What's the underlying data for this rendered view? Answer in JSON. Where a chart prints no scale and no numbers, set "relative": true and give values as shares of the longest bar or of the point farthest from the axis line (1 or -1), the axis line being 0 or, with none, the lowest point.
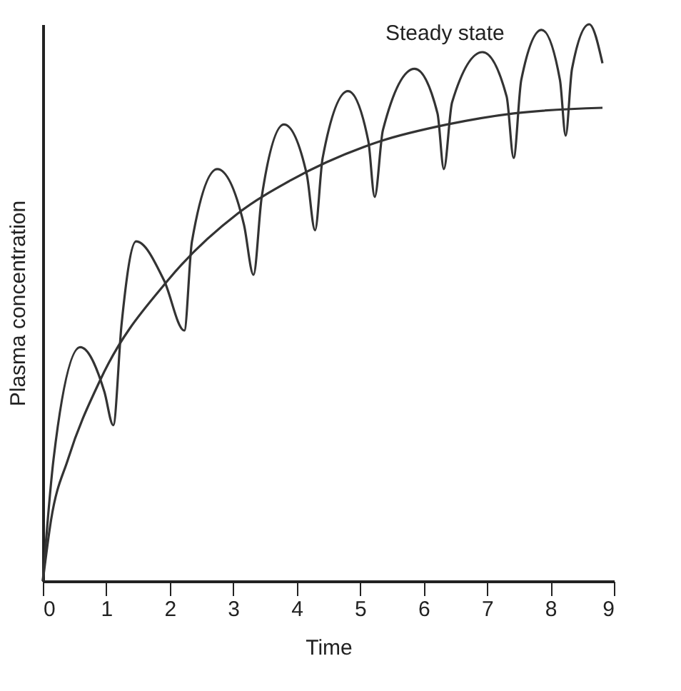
{
  "chart_data": {
    "type": "line",
    "relative": true,
    "xlabel": "Time",
    "ylabel": "Plasma concentration",
    "annotations": [
      "Steady state"
    ],
    "xlim": [
      0,
      9
    ],
    "xticks": [
      0,
      1,
      2,
      3,
      4,
      5,
      6,
      7,
      8,
      9
    ],
    "grid": false,
    "marker": "none",
    "line_style": "solid",
    "series": [
      {
        "color": "#333333",
        "x": [
          0,
          0.17,
          0.59,
          0.97,
          1.11,
          1.24,
          1.47,
          1.91,
          2.23,
          2.35,
          2.75,
          3.17,
          3.32,
          3.45,
          3.8,
          4.16,
          4.29,
          4.41,
          4.81,
          5.13,
          5.23,
          5.36,
          5.86,
          6.22,
          6.32,
          6.45,
          6.93,
          7.31,
          7.42,
          7.54,
          7.86,
          8.15,
          8.24,
          8.34,
          8.61,
          8.82
        ],
        "values": [
          0,
          0.22,
          0.42,
          0.34,
          0.28,
          0.46,
          0.61,
          0.54,
          0.45,
          0.61,
          0.74,
          0.64,
          0.55,
          0.69,
          0.82,
          0.73,
          0.63,
          0.76,
          0.88,
          0.79,
          0.69,
          0.81,
          0.92,
          0.84,
          0.74,
          0.86,
          0.95,
          0.87,
          0.76,
          0.9,
          0.99,
          0.9,
          0.8,
          0.92,
          1.0,
          0.93
        ]
      },
      {
        "color": "#333333",
        "x": [
          0,
          0.13,
          0.4,
          0.9,
          1.97,
          3.07,
          3.91,
          5.32,
          6.37,
          7.42,
          8.82
        ],
        "values": [
          0,
          0.11,
          0.22,
          0.36,
          0.54,
          0.66,
          0.72,
          0.79,
          0.82,
          0.84,
          0.85
        ]
      }
    ]
  }
}
